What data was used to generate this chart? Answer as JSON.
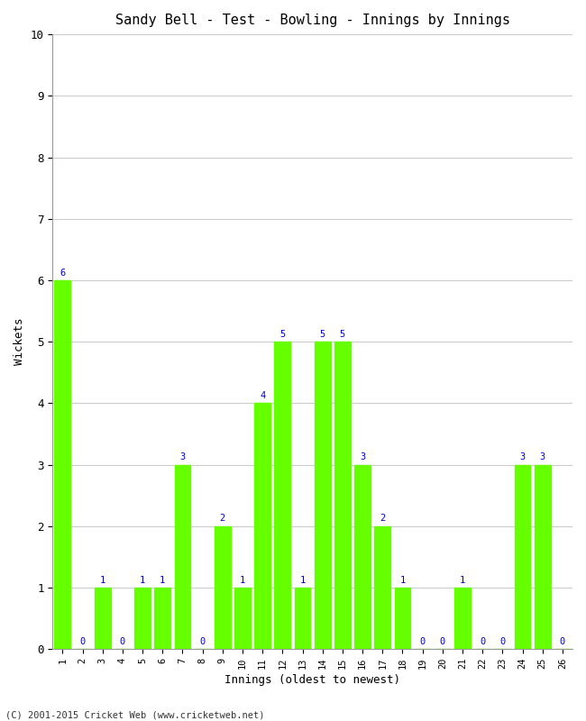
{
  "title": "Sandy Bell - Test - Bowling - Innings by Innings",
  "xlabel": "Innings (oldest to newest)",
  "ylabel": "Wickets",
  "bar_color": "#66ff00",
  "bar_edgecolor": "#66ff00",
  "label_color": "#0000cc",
  "background_color": "#ffffff",
  "grid_color": "#cccccc",
  "footer": "(C) 2001-2015 Cricket Web (www.cricketweb.net)",
  "ylim": [
    0,
    10
  ],
  "yticks": [
    0,
    1,
    2,
    3,
    4,
    5,
    6,
    7,
    8,
    9,
    10
  ],
  "innings": [
    1,
    2,
    3,
    4,
    5,
    6,
    7,
    8,
    9,
    10,
    11,
    12,
    13,
    14,
    15,
    16,
    17,
    18,
    19,
    20,
    21,
    22,
    23,
    24,
    25,
    26
  ],
  "wickets": [
    6,
    0,
    1,
    0,
    1,
    1,
    3,
    0,
    2,
    1,
    4,
    5,
    1,
    5,
    5,
    3,
    2,
    1,
    0,
    0,
    1,
    0,
    0,
    3,
    3,
    0
  ]
}
